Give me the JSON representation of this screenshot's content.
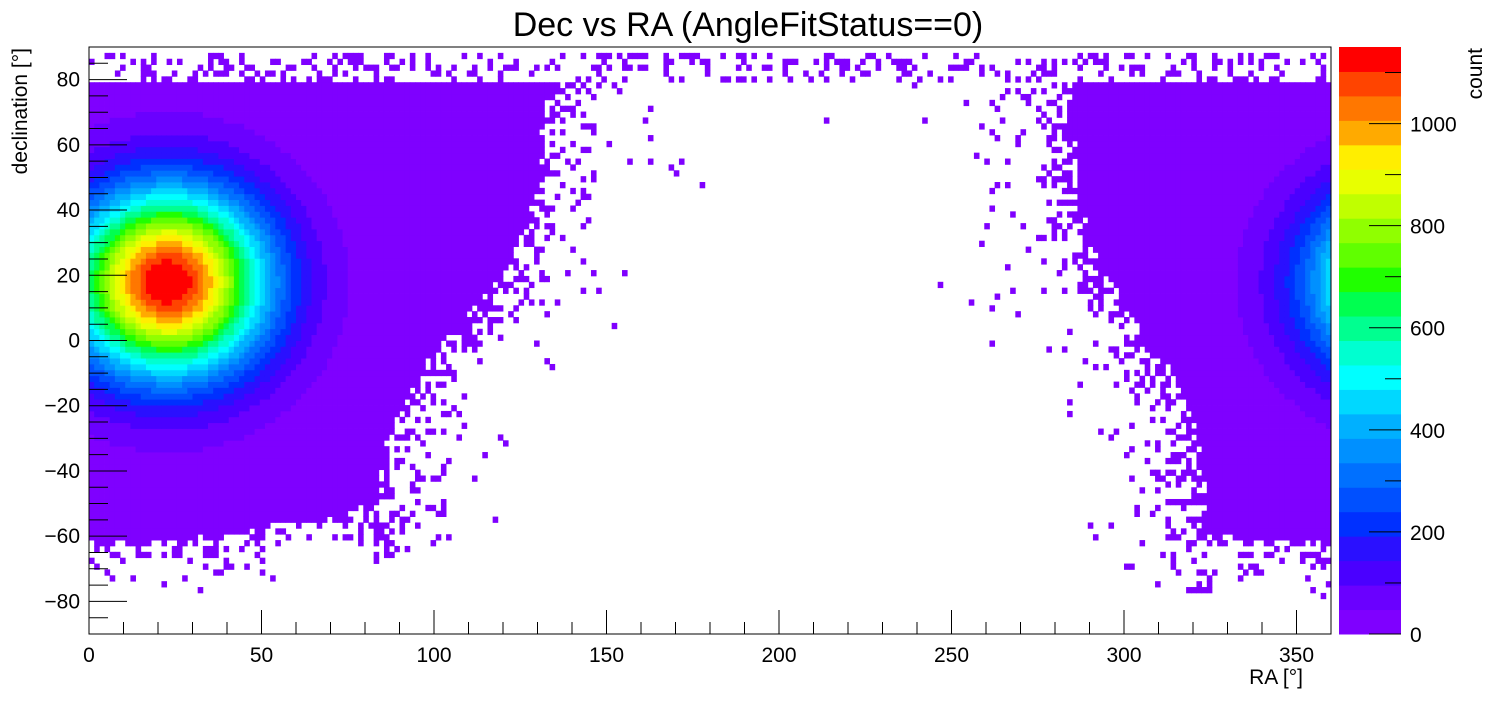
{
  "chart_data": {
    "type": "heatmap",
    "title": "Dec vs RA (AngleFitStatus==0)",
    "xlabel": "RA [°]",
    "ylabel": "declination [°]",
    "zlabel": "count",
    "xlim": [
      0,
      360
    ],
    "ylim": [
      -90,
      90
    ],
    "zlim": [
      0,
      1150
    ],
    "x_ticks": [
      "0",
      "50",
      "100",
      "150",
      "200",
      "250",
      "300",
      "350"
    ],
    "y_ticks": [
      "−80",
      "−60",
      "−40",
      "−20",
      "0",
      "20",
      "40",
      "60",
      "80"
    ],
    "z_ticks": [
      "0",
      "200",
      "400",
      "600",
      "800",
      "1000"
    ],
    "grid": false,
    "palette": [
      "#7f00ff",
      "#6a00ff",
      "#4a00ff",
      "#2a10ff",
      "#0030ff",
      "#0050ff",
      "#0070ff",
      "#0090ff",
      "#00b0ff",
      "#00d8ff",
      "#00ffff",
      "#00ffd0",
      "#00ff90",
      "#00ff50",
      "#20ff00",
      "#60ff00",
      "#90ff00",
      "#c0ff00",
      "#e8ff00",
      "#ffee00",
      "#ffaa00",
      "#ff7700",
      "#ff4400",
      "#ff0000"
    ],
    "clusters": [
      {
        "ra_center": 23,
        "dec_center": 18,
        "peak_count": 1150,
        "ra_sigma": 20,
        "dec_sigma": 20
      },
      {
        "ra_center": 383,
        "dec_center": 18,
        "peak_count": 900,
        "ra_sigma": 20,
        "dec_sigma": 20
      }
    ],
    "background_count": 10
  }
}
